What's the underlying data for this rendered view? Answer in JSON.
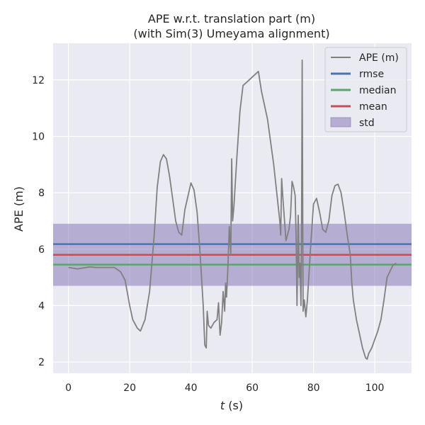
{
  "chart_data": {
    "type": "line",
    "title": "APE w.r.t. translation part (m)",
    "subtitle": "(with Sim(3) Umeyama alignment)",
    "xlabel_var": "t",
    "xlabel_unit": " (s)",
    "ylabel": "APE (m)",
    "xlim": [
      -5,
      112
    ],
    "ylim": [
      1.6,
      13.3
    ],
    "xticks": [
      0,
      20,
      40,
      60,
      80,
      100
    ],
    "yticks": [
      2,
      4,
      6,
      8,
      10,
      12
    ],
    "grid": true,
    "legend_position": "top-right",
    "series": [
      {
        "name": "APE (m)",
        "color": "#808080",
        "x": [
          0,
          3,
          7,
          9,
          15,
          17,
          18.5,
          20,
          21,
          22.5,
          23.5,
          25,
          26.5,
          28,
          29,
          30,
          31,
          32,
          33,
          34,
          35,
          36,
          37,
          38,
          40,
          41,
          42,
          43,
          44,
          44.5,
          45,
          45.3,
          45.7,
          46.5,
          47.5,
          48.5,
          49,
          49.5,
          50,
          50.5,
          51,
          51.3,
          51.6,
          52,
          52.5,
          53,
          53.3,
          53.6,
          54,
          55,
          56,
          57,
          58,
          60,
          62,
          63,
          65,
          67,
          69,
          69.3,
          69.6,
          70,
          71,
          72,
          72.5,
          73,
          73.5,
          74,
          74.3,
          74.6,
          75,
          75.3,
          75.6,
          75.9,
          76.1,
          76.3,
          76.6,
          77,
          77.5,
          78,
          79,
          80,
          81,
          82,
          83,
          84,
          85,
          86,
          87,
          88,
          89,
          90,
          91,
          92,
          92.5,
          93,
          94,
          95,
          96,
          97,
          97.5,
          98,
          99,
          100,
          101,
          102,
          103,
          104,
          106,
          107
        ],
        "y": [
          5.35,
          5.3,
          5.37,
          5.35,
          5.35,
          5.2,
          4.9,
          4.0,
          3.5,
          3.2,
          3.1,
          3.5,
          4.5,
          6.5,
          8.2,
          9.1,
          9.35,
          9.2,
          8.6,
          7.8,
          7.0,
          6.6,
          6.5,
          7.4,
          8.35,
          8.1,
          7.3,
          5.8,
          4.0,
          2.6,
          2.5,
          3.8,
          3.3,
          3.2,
          3.4,
          3.5,
          4.1,
          2.95,
          3.4,
          4.5,
          3.8,
          4.8,
          4.3,
          5.2,
          6.8,
          5.8,
          9.2,
          7.0,
          7.5,
          9.3,
          10.9,
          11.8,
          11.9,
          12.1,
          12.3,
          11.6,
          10.6,
          9.0,
          7.0,
          6.5,
          8.5,
          7.8,
          6.3,
          6.7,
          7.2,
          8.4,
          8.2,
          7.9,
          6.5,
          4.0,
          7.2,
          5.0,
          5.5,
          4.0,
          6.5,
          12.7,
          3.8,
          4.2,
          3.6,
          4.2,
          6.0,
          7.6,
          7.8,
          7.3,
          6.7,
          6.6,
          7.0,
          7.9,
          8.25,
          8.3,
          8.0,
          7.3,
          6.5,
          5.8,
          4.8,
          4.2,
          3.5,
          3.0,
          2.5,
          2.15,
          2.1,
          2.3,
          2.5,
          2.8,
          3.1,
          3.5,
          4.2,
          5.0,
          5.45,
          5.5
        ]
      }
    ],
    "stats": {
      "rmse": {
        "name": "rmse",
        "value": 6.18,
        "color": "#4c72b0"
      },
      "median": {
        "name": "median",
        "value": 5.45,
        "color": "#55a868"
      },
      "mean": {
        "name": "mean",
        "value": 5.8,
        "color": "#c44e52"
      },
      "std": {
        "name": "std",
        "lower": 4.7,
        "upper": 6.9,
        "color": "#8172b2"
      }
    },
    "plot_background": "#eaeaf2"
  }
}
